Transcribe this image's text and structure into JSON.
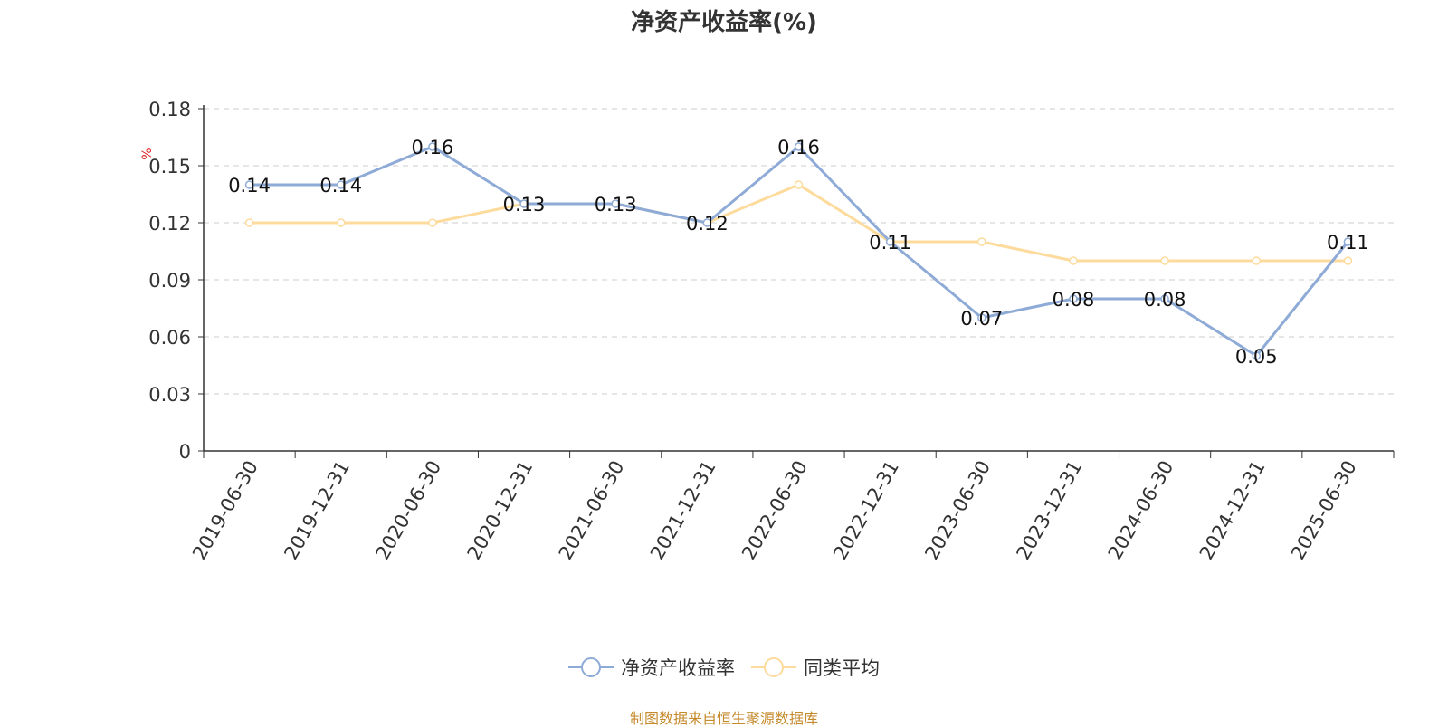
{
  "title": "净资产收益率(%)",
  "source": "制图数据来自恒生聚源数据库",
  "colors": {
    "series1": "#8eaad6",
    "series2": "#fddb9c",
    "ylabel": "#e02020"
  },
  "chart_data": {
    "type": "line",
    "title": "净资产收益率(%)",
    "ylabel": "%",
    "ylim": [
      0,
      0.18
    ],
    "yticks": [
      "0",
      "0.03",
      "0.06",
      "0.09",
      "0.12",
      "0.15",
      "0.18"
    ],
    "grid": true,
    "legend_position": "bottom",
    "categories": [
      "2019-06-30",
      "2019-12-31",
      "2020-06-30",
      "2020-12-31",
      "2021-06-30",
      "2021-12-31",
      "2022-06-30",
      "2022-12-31",
      "2023-06-30",
      "2023-12-31",
      "2024-06-30",
      "2024-12-31",
      "2025-06-30"
    ],
    "series": [
      {
        "name": "净资产收益率",
        "values": [
          0.14,
          0.14,
          0.16,
          0.13,
          0.13,
          0.12,
          0.16,
          0.11,
          0.07,
          0.08,
          0.08,
          0.05,
          0.11
        ],
        "labels": [
          "0.14",
          "0.14",
          "0.16",
          "0.13",
          "0.13",
          "0.12",
          "0.16",
          "0.11",
          "0.07",
          "0.08",
          "0.08",
          "0.05",
          "0.11"
        ]
      },
      {
        "name": "同类平均",
        "values": [
          0.12,
          0.12,
          0.12,
          0.13,
          0.13,
          0.12,
          0.14,
          0.11,
          0.11,
          0.1,
          0.1,
          0.1,
          0.1
        ]
      }
    ]
  }
}
